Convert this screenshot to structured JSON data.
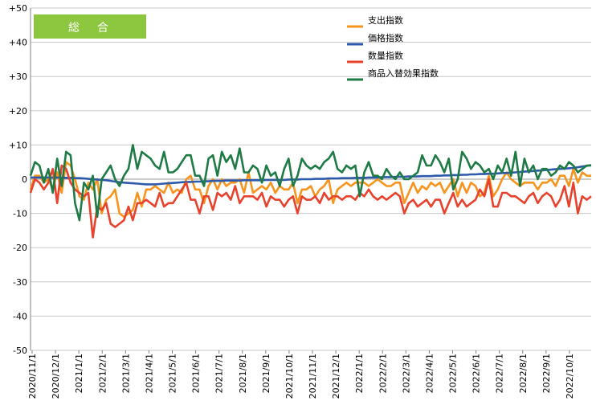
{
  "chart_data": {
    "type": "line",
    "title": "",
    "badge": "総　合",
    "xlabel": "",
    "ylabel": "",
    "ylim": [
      -50,
      50
    ],
    "ytick_labels": [
      "+50",
      "+40",
      "+30",
      "+20",
      "+10",
      "0",
      "-10",
      "-20",
      "-30",
      "-40",
      "-50"
    ],
    "ytick_values": [
      50,
      40,
      30,
      20,
      10,
      0,
      -10,
      -20,
      -30,
      -40,
      -50
    ],
    "xtick_labels": [
      "2020/11/1",
      "2020/12/1",
      "2021/1/1",
      "2021/2/1",
      "2021/3/1",
      "2021/4/1",
      "2021/5/1",
      "2021/6/1",
      "2021/7/1",
      "2021/8/1",
      "2021/9/1",
      "2021/10/1",
      "2021/11/1",
      "2021/12/1",
      "2022/1/1",
      "2022/2/1",
      "2022/3/1",
      "2022/4/1",
      "2022/5/1",
      "2022/6/1",
      "2022/7/1",
      "2022/8/1",
      "2022/9/1",
      "2022/10/1"
    ],
    "grid": true,
    "legend_position": "top-right",
    "series": [
      {
        "name": "支出指数",
        "color": "#F7941D",
        "values": [
          -3,
          1,
          1,
          -1,
          0,
          -3,
          2,
          -4,
          5,
          4,
          0,
          -5,
          -6,
          -1,
          -3,
          0,
          -10,
          -6,
          -5,
          -3,
          -10,
          -11,
          -10,
          -9,
          -4,
          -8,
          -3,
          -3,
          -2,
          -3,
          -4,
          -1,
          -4,
          -3,
          -4,
          0,
          1,
          -3,
          -3,
          -7,
          -2,
          0,
          -3,
          0,
          -2,
          -1,
          -1,
          0,
          -4,
          2,
          -4,
          -3,
          -2,
          -3,
          -1,
          -4,
          -2,
          -3,
          -3,
          -1,
          -7,
          -3,
          -3,
          -2,
          -5,
          -3,
          -2,
          0,
          -7,
          -3,
          -2,
          -1,
          -2,
          -1,
          -1,
          -1,
          -2,
          -1,
          0,
          -1,
          -2,
          -2,
          -1,
          -1,
          -7,
          -4,
          -1,
          -4,
          -2,
          -3,
          -1,
          -2,
          -1,
          -4,
          -2,
          0,
          -5,
          -1,
          -4,
          -1,
          -2,
          -5,
          -4,
          1,
          -5,
          -3,
          0,
          2,
          0,
          -1,
          -2,
          -1,
          -1,
          -1,
          -3,
          -1,
          -1,
          0,
          -2,
          1,
          1,
          -2,
          3,
          -1,
          2,
          1,
          1
        ]
      },
      {
        "name": "価格指数",
        "color": "#2E5AAC",
        "values": [
          0.5,
          0.5,
          0.5,
          0.5,
          0.5,
          0.5,
          0.5,
          0.4,
          0.4,
          0.4,
          0.3,
          0.3,
          0.2,
          0.1,
          0.0,
          -0.1,
          -0.2,
          -0.3,
          -0.5,
          -0.7,
          -0.9,
          -1.0,
          -1.1,
          -1.2,
          -1.3,
          -1.4,
          -1.5,
          -1.5,
          -1.5,
          -1.4,
          -1.3,
          -1.2,
          -1.1,
          -1.0,
          -0.9,
          -0.8,
          -0.8,
          -0.7,
          -0.7,
          -0.6,
          -0.6,
          -0.5,
          -0.5,
          -0.5,
          -0.4,
          -0.4,
          -0.4,
          -0.4,
          -0.3,
          -0.3,
          -0.3,
          -0.3,
          -0.3,
          -0.2,
          -0.2,
          -0.2,
          -0.2,
          -0.2,
          -0.1,
          -0.1,
          -0.1,
          0.0,
          0.0,
          0.0,
          0.1,
          0.1,
          0.1,
          0.2,
          0.2,
          0.2,
          0.3,
          0.3,
          0.3,
          0.4,
          0.4,
          0.4,
          0.5,
          0.5,
          0.5,
          0.6,
          0.6,
          0.6,
          0.7,
          0.7,
          0.7,
          0.8,
          0.8,
          0.8,
          0.9,
          0.9,
          0.9,
          1.0,
          1.0,
          1.1,
          1.1,
          1.2,
          1.2,
          1.3,
          1.3,
          1.4,
          1.4,
          1.5,
          1.5,
          1.6,
          1.6,
          1.7,
          1.8,
          1.8,
          1.9,
          2.0,
          2.1,
          2.2,
          2.3,
          2.4,
          2.5,
          2.6,
          2.7,
          2.8,
          2.9,
          3.0,
          3.1,
          3.2,
          3.3,
          3.5,
          3.7,
          3.9,
          4.1
        ]
      },
      {
        "name": "数量指数",
        "color": "#E8412C",
        "values": [
          -4,
          0,
          -1,
          -3,
          -1,
          3,
          -7,
          4,
          3,
          -1,
          -3,
          -4,
          -5,
          -4,
          -17,
          -8,
          -9,
          -7,
          -13,
          -14,
          -13,
          -12,
          -8,
          -12,
          -7,
          -7,
          -6,
          -7,
          -8,
          -4,
          -8,
          -7,
          -7,
          -5,
          -3,
          -1,
          -6,
          -6,
          -10,
          -5,
          -5,
          -9,
          -4,
          -5,
          -4,
          -6,
          -2,
          -7,
          -5,
          -5,
          -5,
          -6,
          -4,
          -8,
          -5,
          -6,
          -6,
          -8,
          -6,
          -5,
          -10,
          -5,
          -6,
          -6,
          -5,
          -7,
          -4,
          -6,
          -5,
          -5,
          -6,
          -5,
          -5,
          -6,
          -4,
          -5,
          -3,
          -5,
          -6,
          -5,
          -6,
          -5,
          -4,
          -5,
          -10,
          -7,
          -6,
          -8,
          -7,
          -6,
          -8,
          -6,
          -6,
          -10,
          -7,
          -4,
          -8,
          -6,
          -8,
          -7,
          -6,
          -3,
          -5,
          0,
          -8,
          -8,
          -4,
          -4,
          -5,
          -5,
          -6,
          -7,
          -5,
          -4,
          -7,
          -5,
          -4,
          -5,
          -8,
          -6,
          -2,
          -8,
          -1,
          -10,
          -5,
          -6,
          -5
        ]
      },
      {
        "name": "商品入替効果指数",
        "color": "#1E7B45",
        "values": [
          1,
          5,
          4,
          -1,
          3,
          -4,
          6,
          -2,
          8,
          7,
          -7,
          -12,
          -1,
          -3,
          1,
          -11,
          0,
          2,
          4,
          0,
          -2,
          1,
          3,
          10,
          3,
          8,
          7,
          6,
          4,
          3,
          8,
          2,
          2,
          3,
          5,
          7,
          7,
          1,
          1,
          -2,
          6,
          7,
          1,
          8,
          5,
          7,
          3,
          9,
          2,
          2,
          4,
          3,
          -1,
          4,
          1,
          2,
          -2,
          3,
          6,
          -2,
          1,
          6,
          4,
          3,
          4,
          3,
          5,
          6,
          8,
          3,
          2,
          4,
          3,
          4,
          -5,
          2,
          5,
          1,
          1,
          0,
          3,
          1,
          0,
          2,
          0,
          0,
          1,
          2,
          7,
          4,
          4,
          7,
          5,
          2,
          6,
          -3,
          0,
          8,
          6,
          3,
          5,
          4,
          2,
          3,
          0,
          4,
          2,
          6,
          1,
          8,
          -2,
          6,
          2,
          4,
          0,
          3,
          3,
          1,
          2,
          4,
          3,
          5,
          4,
          2,
          3,
          4,
          4
        ]
      }
    ]
  }
}
